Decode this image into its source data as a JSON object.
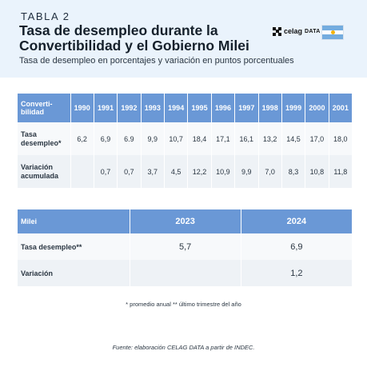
{
  "header": {
    "eyebrow": "TABLA 2",
    "title": "Tasa de desempleo durante la Convertibilidad y el Gobierno Milei",
    "subtitle": "Tasa de desempleo en porcentajes y variación en puntos porcentuales",
    "logo_text_a": "celag",
    "logo_text_b": "DATA",
    "flag_colors": [
      "#74acdf",
      "#ffffff",
      "#74acdf"
    ]
  },
  "table1": {
    "corner_label": "Converti-bilidad",
    "years": [
      "1990",
      "1991",
      "1992",
      "1993",
      "1994",
      "1995",
      "1996",
      "1997",
      "1998",
      "1999",
      "2000",
      "2001"
    ],
    "rows": [
      {
        "label": "Tasa desempleo*",
        "values": [
          "6,2",
          "6,9",
          "6.9",
          "9,9",
          "10,7",
          "18,4",
          "17,1",
          "16,1",
          "13,2",
          "14,5",
          "17,0",
          "18,0"
        ]
      },
      {
        "label": "Variación acumulada",
        "values": [
          "",
          "0,7",
          "0,7",
          "3,7",
          "4,5",
          "12,2",
          "10,9",
          "9,9",
          "7,0",
          "8,3",
          "10,8",
          "11,8"
        ]
      }
    ]
  },
  "table2": {
    "corner_label": "Milei",
    "years": [
      "2023",
      "2024"
    ],
    "rows": [
      {
        "label": "Tasa desempleo**",
        "values": [
          "5,7",
          "6,9"
        ]
      },
      {
        "label": "Variación",
        "values": [
          "",
          "1,2"
        ]
      }
    ]
  },
  "footnote": "* promedio anual ** último trimestre del año",
  "source": "Fuente: elaboración CELAG DATA a partir de INDEC.",
  "colors": {
    "header_bg": "#eaf3fc",
    "table_header_bg": "#6a98d6",
    "row_light": "#f7f9fb",
    "row_dark": "#eef2f6"
  }
}
